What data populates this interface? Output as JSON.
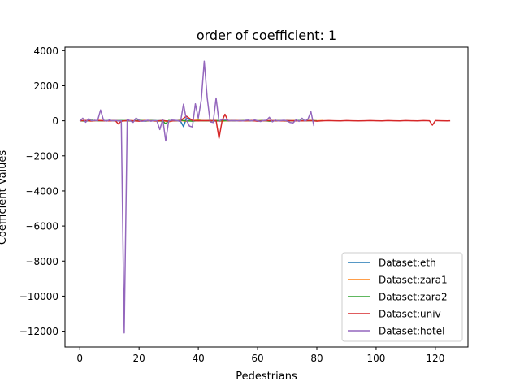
{
  "chart_data": {
    "type": "line",
    "title": "order of coefficient: 1",
    "xlabel": "Pedestrians",
    "ylabel": "Coefficient Values",
    "xlim": [
      -5,
      131
    ],
    "ylim": [
      -12900,
      4200
    ],
    "xticks": [
      0,
      20,
      40,
      60,
      80,
      100,
      120
    ],
    "yticks": [
      4000,
      2000,
      0,
      -2000,
      -4000,
      -6000,
      -8000,
      -10000,
      -12000
    ],
    "grid": false,
    "legend_position": "lower-right",
    "series": [
      {
        "name": "Dataset:eth",
        "color": "#1f77b4",
        "x": [
          0,
          2,
          4,
          6,
          8,
          10,
          12,
          14,
          16,
          18,
          20,
          22,
          24,
          26,
          28,
          30,
          32,
          34,
          35,
          36,
          38,
          40,
          42,
          44,
          46,
          48,
          50,
          52,
          54,
          56,
          58,
          60,
          62,
          64,
          66,
          68,
          70,
          72,
          74,
          76,
          78
        ],
        "y": [
          0,
          20,
          -10,
          15,
          0,
          -10,
          10,
          0,
          5,
          -5,
          10,
          -20,
          15,
          0,
          10,
          -30,
          20,
          -20,
          -330,
          150,
          -10,
          20,
          -10,
          30,
          -20,
          10,
          0,
          15,
          -10,
          5,
          20,
          -15,
          10,
          0,
          5,
          -10,
          10,
          0,
          -5,
          10,
          0
        ]
      },
      {
        "name": "Dataset:zara1",
        "color": "#ff7f0e",
        "x": [
          0,
          2,
          4,
          6,
          8,
          10,
          12,
          14,
          16,
          18,
          20,
          22,
          24,
          26,
          28,
          30,
          32,
          34,
          36,
          38,
          40,
          42,
          44,
          46,
          48,
          50,
          52,
          54,
          56,
          58,
          60,
          62,
          64,
          66,
          68,
          70,
          72,
          74,
          76,
          78,
          80,
          82
        ],
        "y": [
          0,
          10,
          -20,
          30,
          0,
          -10,
          20,
          -15,
          10,
          0,
          -10,
          20,
          0,
          -30,
          10,
          -60,
          20,
          10,
          -20,
          10,
          40,
          -10,
          20,
          0,
          -20,
          10,
          0,
          15,
          -10,
          10,
          0,
          20,
          -10,
          10,
          0,
          -20,
          10,
          0,
          -10,
          20,
          0,
          10
        ]
      },
      {
        "name": "Dataset:zara2",
        "color": "#2ca02c",
        "x": [
          0,
          2,
          4,
          6,
          8,
          10,
          12,
          14,
          16,
          18,
          20,
          22,
          24,
          26,
          28,
          29,
          30,
          32,
          34,
          36,
          38,
          40,
          42,
          44,
          46,
          48,
          50,
          52,
          54,
          56,
          58,
          60,
          62,
          64,
          66,
          68,
          70,
          72,
          74,
          76,
          78,
          80
        ],
        "y": [
          0,
          -20,
          30,
          0,
          -10,
          20,
          -10,
          10,
          0,
          -20,
          30,
          -10,
          10,
          0,
          -20,
          -170,
          20,
          -10,
          30,
          0,
          -20,
          10,
          0,
          -10,
          20,
          0,
          10,
          -10,
          0,
          20,
          -10,
          0,
          10,
          -20,
          0,
          10,
          0,
          -10,
          20,
          0,
          10,
          0
        ]
      },
      {
        "name": "Dataset:univ",
        "color": "#d62728",
        "x": [
          0,
          2,
          4,
          6,
          8,
          10,
          12,
          13,
          14,
          16,
          18,
          20,
          22,
          24,
          26,
          28,
          30,
          32,
          34,
          36,
          38,
          40,
          42,
          44,
          46,
          47,
          48,
          49,
          50,
          52,
          54,
          56,
          58,
          60,
          62,
          64,
          66,
          68,
          70,
          72,
          74,
          76,
          78,
          80,
          82,
          84,
          86,
          88,
          90,
          92,
          94,
          96,
          98,
          100,
          102,
          104,
          106,
          108,
          110,
          112,
          114,
          116,
          118,
          119,
          120,
          122,
          124,
          125
        ],
        "y": [
          0,
          10,
          -10,
          20,
          0,
          -10,
          10,
          -180,
          -20,
          10,
          0,
          -20,
          10,
          0,
          -10,
          10,
          -20,
          0,
          10,
          260,
          20,
          -10,
          10,
          0,
          20,
          -1000,
          -20,
          370,
          0,
          10,
          -10,
          0,
          10,
          -20,
          0,
          10,
          0,
          -10,
          10,
          0,
          -10,
          0,
          10,
          -20,
          0,
          10,
          0,
          -10,
          10,
          0,
          -10,
          0,
          10,
          0,
          -10,
          10,
          0,
          -10,
          10,
          0,
          -10,
          10,
          0,
          -250,
          10,
          0,
          -10,
          0
        ]
      },
      {
        "name": "Dataset:hotel",
        "color": "#9467bd",
        "x": [
          0,
          1,
          2,
          3,
          4,
          5,
          6,
          7,
          8,
          9,
          10,
          11,
          12,
          13,
          14,
          15,
          16,
          17,
          18,
          19,
          20,
          21,
          22,
          23,
          24,
          25,
          26,
          27,
          28,
          29,
          30,
          31,
          32,
          33,
          34,
          35,
          36,
          37,
          38,
          39,
          40,
          41,
          42,
          43,
          44,
          45,
          46,
          47,
          48,
          49,
          50,
          51,
          52,
          53,
          54,
          55,
          56,
          57,
          58,
          59,
          60,
          61,
          62,
          63,
          64,
          65,
          66,
          67,
          68,
          69,
          70,
          71,
          72,
          73,
          74,
          75,
          76,
          77,
          78,
          79
        ],
        "y": [
          -20,
          150,
          -80,
          120,
          -10,
          30,
          0,
          620,
          40,
          -20,
          50,
          0,
          20,
          -10,
          0,
          -12100,
          80,
          0,
          -90,
          160,
          30,
          -30,
          0,
          30,
          -20,
          10,
          -10,
          -500,
          80,
          -1150,
          -20,
          40,
          30,
          10,
          -50,
          950,
          40,
          -300,
          -350,
          970,
          150,
          1200,
          3400,
          1300,
          -60,
          -100,
          1300,
          -50,
          100,
          70,
          30,
          0,
          10,
          -10,
          20,
          -10,
          30,
          40,
          -10,
          50,
          0,
          -40,
          20,
          30,
          200,
          -60,
          40,
          -10,
          20,
          30,
          -20,
          -100,
          -120,
          60,
          -30,
          150,
          -20,
          100,
          520,
          -300
        ]
      }
    ]
  }
}
